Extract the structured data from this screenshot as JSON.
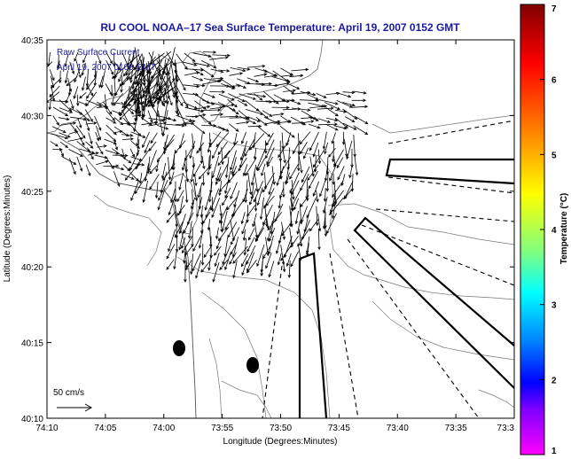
{
  "title": "RU COOL  NOAA–17  Sea Surface Temperature:  April 19, 2007 0152 GMT",
  "inset_lines": [
    "Raw Surface Current",
    "April 19, 2007 0100 GMT"
  ],
  "scale_label": "50 cm/s",
  "x_axis": {
    "label": "Longitude (Degrees:Minutes)",
    "ticks": [
      "74:10",
      "74:05",
      "74:00",
      "73:55",
      "73:50",
      "73:45",
      "73:40",
      "73:35",
      "73:3"
    ]
  },
  "y_axis": {
    "label": "Latitude (Degrees:Minutes)",
    "ticks": [
      "40:35",
      "40:30",
      "40:25",
      "40:20",
      "40:15",
      "40:10"
    ]
  },
  "colorbar": {
    "label": "Temperature (°C)",
    "ticks": [
      "7",
      "6",
      "5",
      "4",
      "3",
      "2",
      "1"
    ],
    "colors": [
      "#800000",
      "#ff0000",
      "#ff8000",
      "#ffff00",
      "#80ff80",
      "#00ffff",
      "#0080ff",
      "#0000ff",
      "#8000ff",
      "#ff00ff"
    ]
  }
}
